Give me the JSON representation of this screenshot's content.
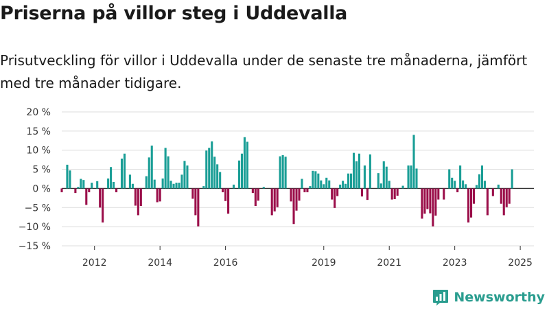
{
  "title": "Priserna på villor steg i Uddevalla",
  "subtitle": "Prisutveckling för villor i Uddevalla under de senaste tre månaderna, jämfört med tre månader tidigare.",
  "brand": "Newsworthy",
  "colors": {
    "positive": "#1a9e96",
    "negative": "#9b0f4a",
    "grid": "#dcdcdc",
    "zero": "#333333",
    "brand": "#2a9d8f"
  },
  "chart_data": {
    "type": "bar",
    "x_start": "2011-01",
    "x_interval": "month",
    "xlim": [
      "2011-01",
      "2025-06"
    ],
    "xticks": [
      "2012",
      "2014",
      "2016",
      "2019",
      "2021",
      "2023",
      "2025"
    ],
    "ylim": [
      -15,
      20
    ],
    "yticks": [
      "20 %",
      "15 %",
      "10 %",
      "5 %",
      "0 %",
      "−5 %",
      "−10 %",
      "−15 %"
    ],
    "grid": true,
    "annotation": {
      "label": "5 %",
      "month": "2025-04"
    },
    "values": [
      -1.0,
      0,
      6.2,
      4.7,
      0,
      -1.2,
      0.4,
      2.5,
      2.2,
      -4.3,
      -1.0,
      1.5,
      0,
      1.9,
      -5.0,
      -8.9,
      0,
      2.6,
      5.6,
      1.7,
      -1.0,
      0,
      7.8,
      9.1,
      0,
      3.6,
      1.2,
      -4.5,
      -7.0,
      -4.6,
      0,
      3.2,
      8.1,
      11.2,
      2.3,
      -3.6,
      -3.4,
      2.6,
      10.6,
      8.4,
      2.0,
      1.2,
      1.5,
      1.5,
      3.6,
      7.2,
      6.0,
      0,
      -2.7,
      -7.0,
      -9.9,
      0,
      0.6,
      9.9,
      10.6,
      12.3,
      8.3,
      6.3,
      4.3,
      -1.0,
      -3.3,
      -6.6,
      0,
      1.0,
      0,
      7.3,
      9.1,
      13.4,
      12.2,
      0,
      -1.2,
      -4.6,
      -3.2,
      0,
      0.4,
      0,
      0,
      -7.0,
      -6.0,
      -4.9,
      8.4,
      8.7,
      8.3,
      0,
      -3.4,
      -9.3,
      -5.8,
      -3.2,
      2.5,
      -1.0,
      -1.0,
      0.6,
      4.6,
      4.5,
      3.9,
      2.1,
      1.1,
      2.8,
      2.1,
      -2.9,
      -5.1,
      -2.0,
      1.0,
      2.0,
      1.2,
      3.9,
      3.9,
      9.3,
      7.1,
      9.1,
      -2.1,
      6.0,
      -3.0,
      8.9,
      0,
      0,
      4.0,
      1.3,
      7.1,
      5.7,
      2.0,
      -2.9,
      -2.8,
      -1.9,
      0,
      0.7,
      0,
      6.0,
      6.0,
      14.0,
      5.2,
      0,
      -7.9,
      -6.6,
      -5.4,
      -6.5,
      -9.9,
      -7.1,
      -2.9,
      0,
      -2.9,
      0,
      5.0,
      2.8,
      2.0,
      -1.0,
      6.0,
      2.1,
      1.1,
      -8.9,
      -7.6,
      -4.0,
      0.9,
      3.7,
      6.0,
      2.0,
      -7.0,
      0,
      -2.0,
      0,
      1.0,
      -4.0,
      -7.0,
      -4.9,
      -4.0,
      5.0
    ]
  }
}
